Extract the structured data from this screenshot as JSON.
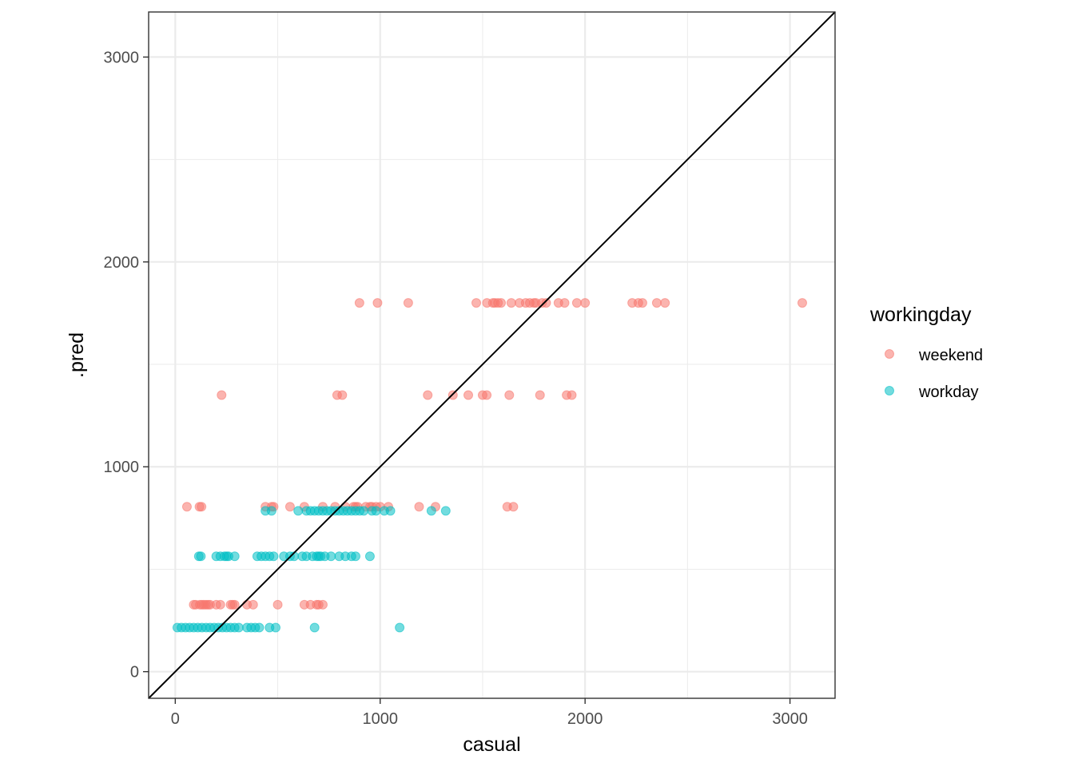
{
  "chart_data": {
    "type": "scatter",
    "title": "",
    "xlabel": "casual",
    "ylabel": ".pred",
    "xlim": [
      -130,
      3220
    ],
    "ylim": [
      -130,
      3220
    ],
    "x_ticks": [
      0,
      1000,
      2000,
      3000
    ],
    "y_ticks": [
      0,
      1000,
      2000,
      3000
    ],
    "x_tick_labels": [
      "0",
      "1000",
      "2000",
      "3000"
    ],
    "y_tick_labels": [
      "0",
      "1000",
      "2000",
      "3000"
    ],
    "grid": true,
    "reference_line": {
      "type": "identity",
      "slope": 1,
      "intercept": 0,
      "color": "#000000"
    },
    "legend": {
      "title": "workingday",
      "position": "right"
    },
    "series": [
      {
        "name": "weekend",
        "color": "#F8766D",
        "x": [
          899,
          987,
          1137,
          1469,
          1521,
          1550,
          1560,
          1575,
          1590,
          1640,
          1680,
          1710,
          1730,
          1750,
          1760,
          1790,
          1810,
          1870,
          1900,
          1960,
          2000,
          2230,
          2260,
          2280,
          2350,
          2390,
          3060,
          226,
          790,
          815,
          1232,
          1355,
          1430,
          1500,
          1520,
          1630,
          1780,
          1910,
          1935,
          57,
          118,
          128,
          440,
          470,
          480,
          560,
          630,
          720,
          780,
          830,
          870,
          880,
          890,
          930,
          950,
          960,
          980,
          1000,
          1040,
          1190,
          1270,
          1620,
          1650,
          90,
          100,
          120,
          130,
          140,
          150,
          160,
          170,
          200,
          220,
          270,
          280,
          290,
          350,
          380,
          500,
          630,
          660,
          690,
          700,
          720
        ],
        "y": [
          1800,
          1800,
          1800,
          1800,
          1800,
          1800,
          1800,
          1800,
          1800,
          1800,
          1800,
          1800,
          1800,
          1800,
          1800,
          1800,
          1800,
          1800,
          1800,
          1800,
          1800,
          1800,
          1800,
          1800,
          1800,
          1800,
          1800,
          1350,
          1350,
          1350,
          1350,
          1350,
          1350,
          1350,
          1350,
          1350,
          1350,
          1350,
          1350,
          805,
          805,
          805,
          805,
          805,
          805,
          805,
          805,
          805,
          805,
          805,
          805,
          805,
          805,
          805,
          805,
          805,
          805,
          805,
          805,
          805,
          805,
          805,
          805,
          327,
          327,
          327,
          327,
          327,
          327,
          327,
          327,
          327,
          327,
          327,
          327,
          327,
          327,
          327,
          327,
          327,
          327,
          327,
          327,
          327
        ]
      },
      {
        "name": "workday",
        "color": "#00BFC4",
        "x": [
          440,
          470,
          600,
          640,
          660,
          680,
          700,
          720,
          740,
          760,
          780,
          800,
          820,
          840,
          860,
          880,
          900,
          920,
          960,
          980,
          1020,
          1050,
          1250,
          1320,
          115,
          125,
          200,
          220,
          240,
          250,
          260,
          290,
          400,
          420,
          440,
          460,
          480,
          530,
          560,
          580,
          620,
          640,
          670,
          690,
          700,
          710,
          730,
          760,
          800,
          830,
          860,
          880,
          950,
          10,
          30,
          50,
          70,
          90,
          110,
          130,
          150,
          170,
          190,
          210,
          230,
          250,
          270,
          290,
          310,
          350,
          370,
          390,
          410,
          460,
          490,
          680,
          1095
        ],
        "y": [
          785,
          785,
          785,
          785,
          785,
          785,
          785,
          785,
          785,
          785,
          785,
          785,
          785,
          785,
          785,
          785,
          785,
          785,
          785,
          785,
          785,
          785,
          785,
          785,
          563,
          563,
          563,
          563,
          563,
          563,
          563,
          563,
          563,
          563,
          563,
          563,
          563,
          563,
          563,
          563,
          563,
          563,
          563,
          563,
          563,
          563,
          563,
          563,
          563,
          563,
          563,
          563,
          563,
          215,
          215,
          215,
          215,
          215,
          215,
          215,
          215,
          215,
          215,
          215,
          215,
          215,
          215,
          215,
          215,
          215,
          215,
          215,
          215,
          215,
          215,
          215,
          215
        ]
      }
    ]
  }
}
